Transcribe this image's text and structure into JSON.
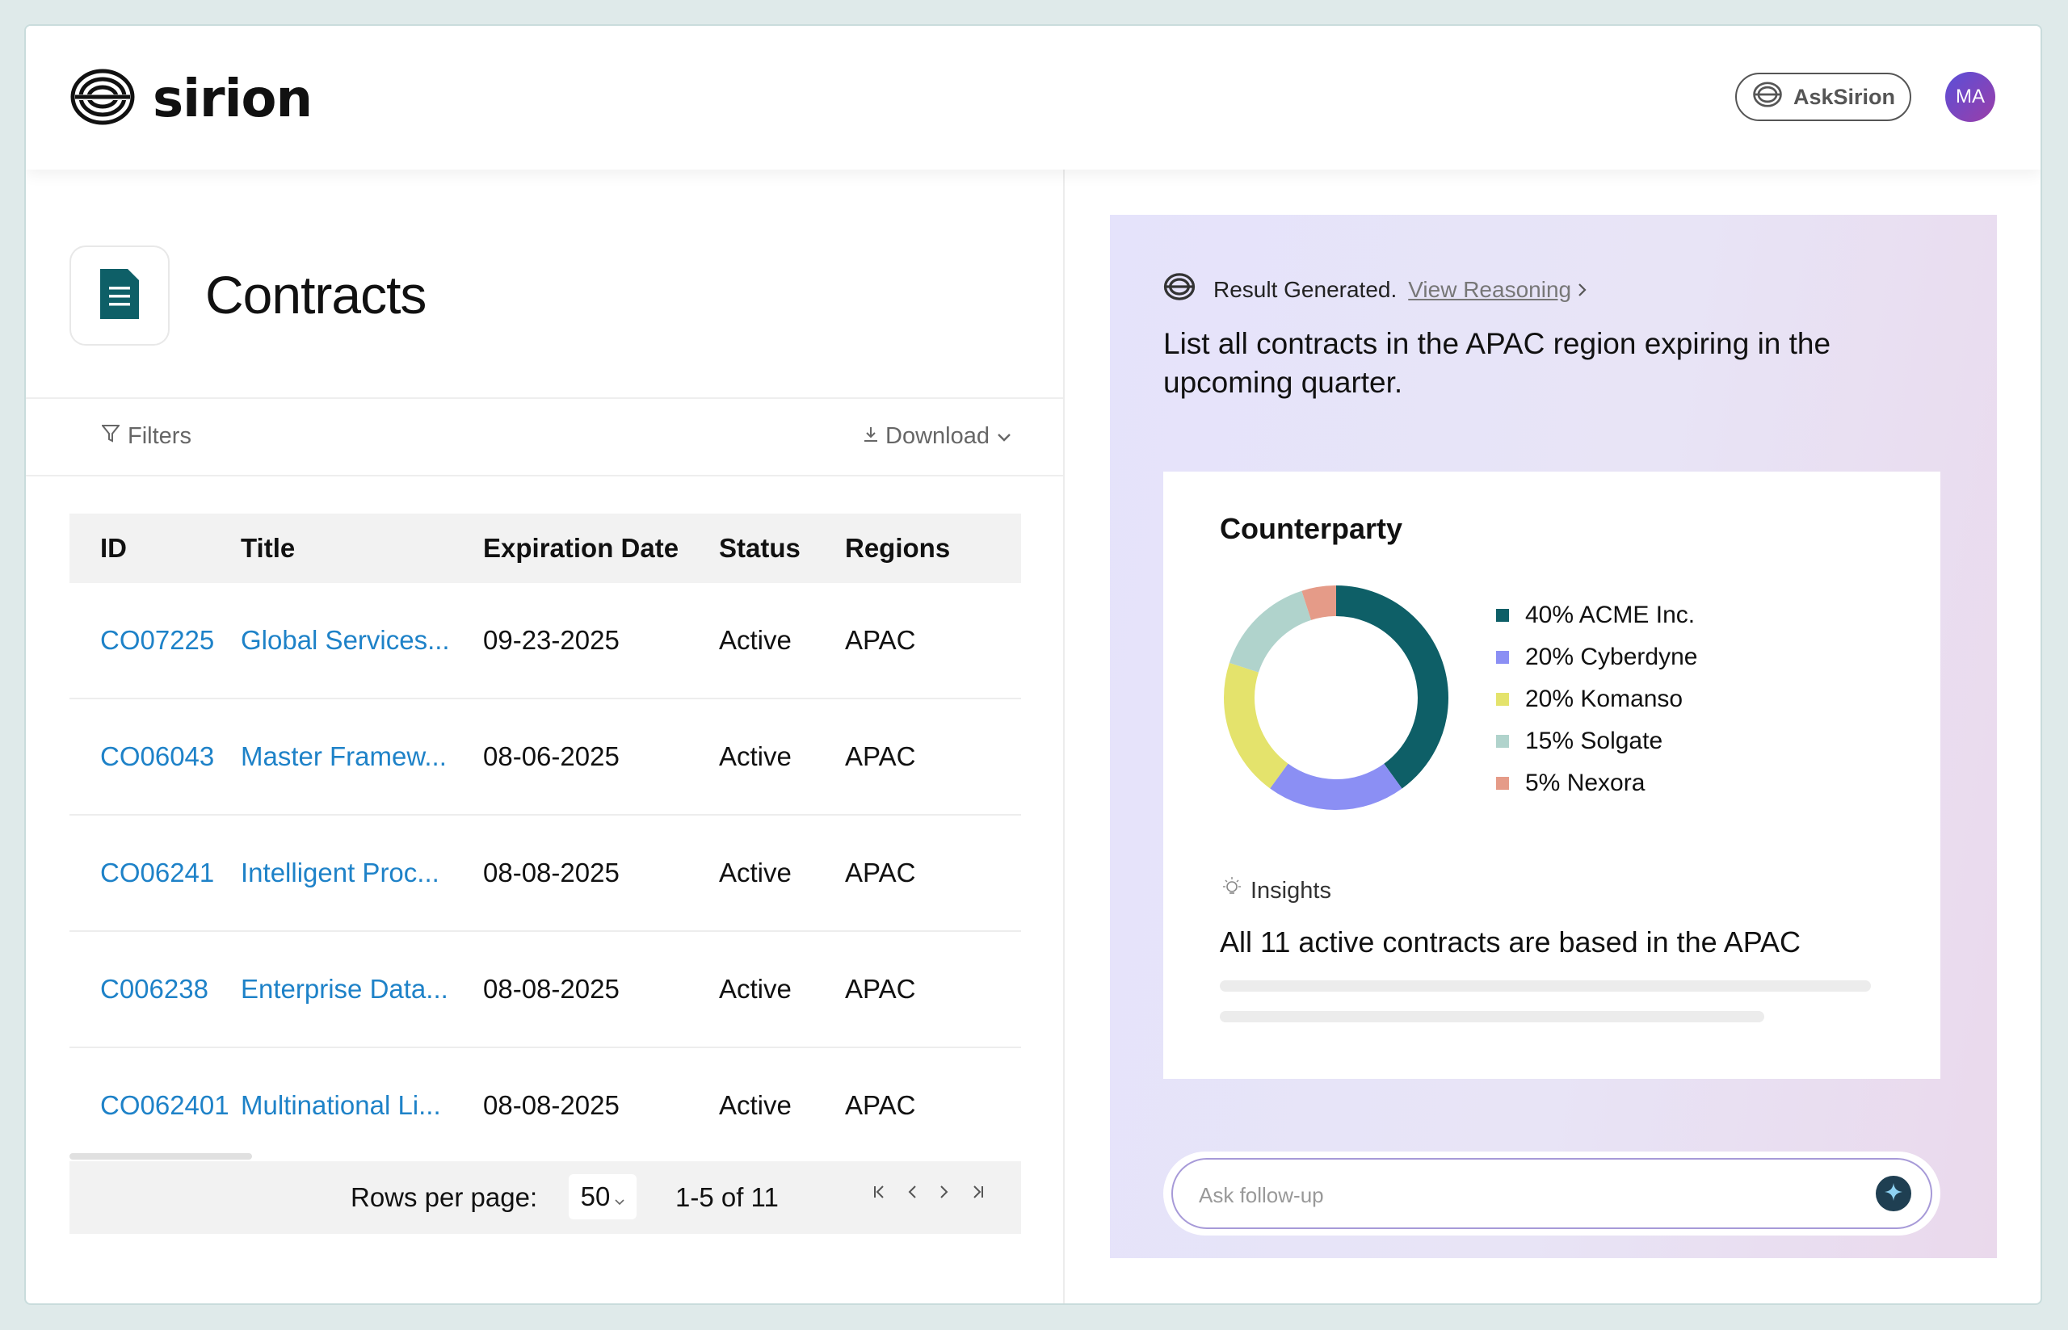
{
  "header": {
    "brand_name": "sirion",
    "ask_button_label": "AskSirion",
    "avatar_initials": "MA"
  },
  "page": {
    "title": "Contracts",
    "filters_label": "Filters",
    "download_label": "Download"
  },
  "table": {
    "columns": [
      "ID",
      "Title",
      "Expiration Date",
      "Status",
      "Regions"
    ],
    "rows": [
      {
        "id": "CO07225",
        "title": "Global Services...",
        "date": "09-23-2025",
        "status": "Active",
        "region": "APAC"
      },
      {
        "id": "CO06043",
        "title": "Master Framew...",
        "date": "08-06-2025",
        "status": "Active",
        "region": "APAC"
      },
      {
        "id": "CO06241",
        "title": "Intelligent Proc...",
        "date": "08-08-2025",
        "status": "Active",
        "region": "APAC"
      },
      {
        "id": "C006238",
        "title": "Enterprise Data...",
        "date": "08-08-2025",
        "status": "Active",
        "region": "APAC"
      },
      {
        "id": "CO062401",
        "title": "Multinational Li...",
        "date": "08-08-2025",
        "status": "Active",
        "region": "APAC"
      }
    ]
  },
  "pagination": {
    "rows_per_page_label": "Rows per page:",
    "rows_per_page_value": "50",
    "range_text": "1-5 of 11"
  },
  "assistant": {
    "result_text": "Result Generated.",
    "view_reasoning_label": "View Reasoning",
    "prompt_text": "List all contracts in the APAC region expiring in the upcoming quarter.",
    "insights_label": "Insights",
    "insights_text": "All 11 active contracts are based in the APAC",
    "followup_placeholder": "Ask follow-up"
  },
  "chart_data": {
    "type": "pie",
    "title": "Counterparty",
    "slices": [
      {
        "label": "40% ACME Inc.",
        "value": 40,
        "color": "#0e5f67"
      },
      {
        "label": "20% Cyberdyne",
        "value": 20,
        "color": "#8b8ff4"
      },
      {
        "label": "20% Komanso",
        "value": 20,
        "color": "#e4e36c"
      },
      {
        "label": "15% Solgate",
        "value": 15,
        "color": "#b0d3cc"
      },
      {
        "label": "5% Nexora",
        "value": 5,
        "color": "#e59b88"
      }
    ]
  },
  "colors": {
    "link": "#1e82c8",
    "doc_icon": "#0e5f67",
    "right_panel_bg": "#e6e3f8"
  }
}
